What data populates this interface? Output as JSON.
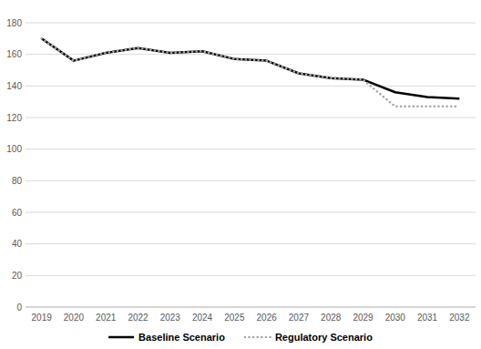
{
  "chart_data": {
    "type": "line",
    "categories": [
      "2019",
      "2020",
      "2021",
      "2022",
      "2023",
      "2024",
      "2025",
      "2026",
      "2027",
      "2028",
      "2029",
      "2030",
      "2031",
      "2032"
    ],
    "series": [
      {
        "name": "Baseline Scenario",
        "color": "#000000",
        "line_style": "solid",
        "values": [
          170,
          156,
          161,
          164,
          161,
          162,
          157,
          156,
          148,
          145,
          144,
          136,
          133,
          132
        ]
      },
      {
        "name": "Regulatory Scenario",
        "color": "#a6a6a6",
        "line_style": "dotted",
        "values": [
          170,
          156,
          161,
          164,
          161,
          162,
          157,
          156,
          148,
          145,
          144,
          127,
          127,
          127
        ]
      }
    ],
    "ylim": [
      0,
      180
    ],
    "yticks": [
      0,
      20,
      40,
      60,
      80,
      100,
      120,
      140,
      160,
      180
    ],
    "grid": true,
    "legend": "bottom"
  }
}
